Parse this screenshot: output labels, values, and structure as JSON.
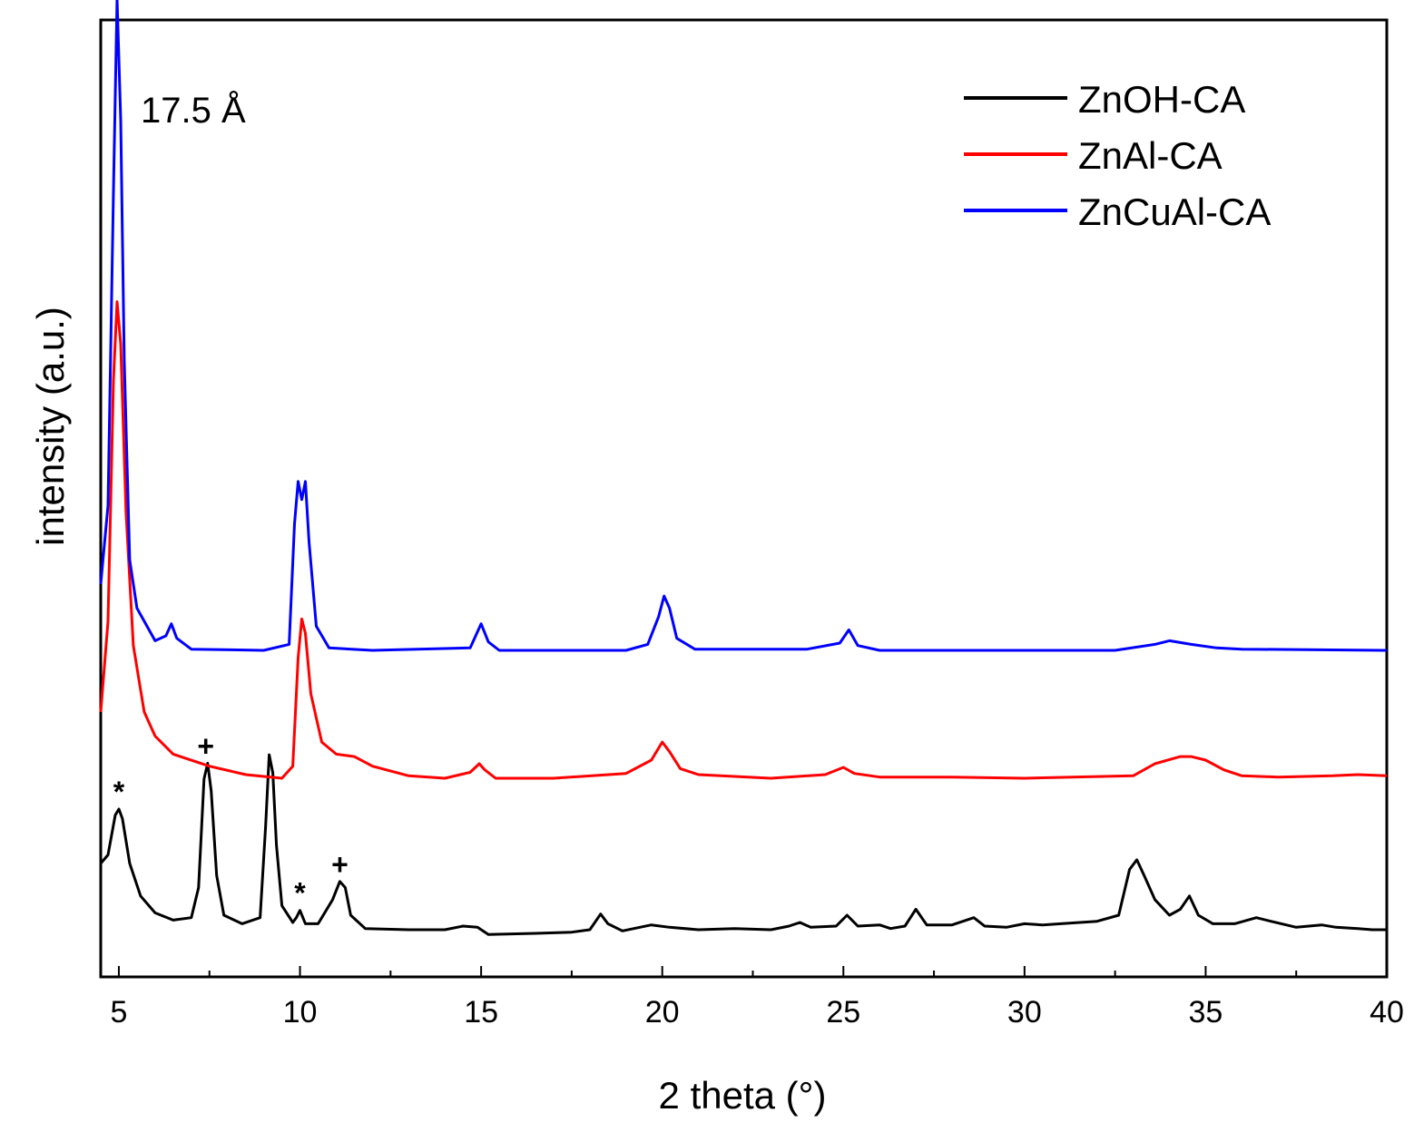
{
  "chart_data": {
    "type": "line",
    "title": "",
    "xlabel": "2 theta (°)",
    "ylabel": "intensity (a.u.)",
    "xlim": [
      4.5,
      40
    ],
    "xticks": [
      5,
      10,
      15,
      20,
      25,
      30,
      35,
      40
    ],
    "y_ticks_shown": false,
    "grid": false,
    "legend_position": "top-right",
    "annotation": "17.5 Å",
    "peak_markers": [
      {
        "symbol": "*",
        "x": 5.0,
        "series": "ZnOH-CA"
      },
      {
        "symbol": "+",
        "x": 7.4,
        "series": "ZnOH-CA"
      },
      {
        "symbol": "*",
        "x": 10.0,
        "series": "ZnOH-CA"
      },
      {
        "symbol": "+",
        "x": 11.1,
        "series": "ZnOH-CA"
      }
    ],
    "series": [
      {
        "name": "ZnOH-CA",
        "color": "#000000",
        "points": [
          [
            4.5,
            0.55
          ],
          [
            4.7,
            0.62
          ],
          [
            4.9,
            0.95
          ],
          [
            5.0,
            1.0
          ],
          [
            5.1,
            0.92
          ],
          [
            5.3,
            0.55
          ],
          [
            5.6,
            0.28
          ],
          [
            6.0,
            0.14
          ],
          [
            6.5,
            0.08
          ],
          [
            7.0,
            0.1
          ],
          [
            7.2,
            0.35
          ],
          [
            7.35,
            1.25
          ],
          [
            7.45,
            1.38
          ],
          [
            7.55,
            1.15
          ],
          [
            7.7,
            0.45
          ],
          [
            7.9,
            0.12
          ],
          [
            8.4,
            0.05
          ],
          [
            8.9,
            0.1
          ],
          [
            9.05,
            0.85
          ],
          [
            9.15,
            1.45
          ],
          [
            9.25,
            1.3
          ],
          [
            9.35,
            0.7
          ],
          [
            9.5,
            0.2
          ],
          [
            9.8,
            0.06
          ],
          [
            9.9,
            0.1
          ],
          [
            10.0,
            0.16
          ],
          [
            10.15,
            0.05
          ],
          [
            10.5,
            0.05
          ],
          [
            10.9,
            0.25
          ],
          [
            11.1,
            0.4
          ],
          [
            11.25,
            0.35
          ],
          [
            11.4,
            0.12
          ],
          [
            11.8,
            0.01
          ],
          [
            13.0,
            0.0
          ],
          [
            14.0,
            0.0
          ],
          [
            14.5,
            0.03
          ],
          [
            14.9,
            0.02
          ],
          [
            15.2,
            -0.04
          ],
          [
            16.5,
            -0.03
          ],
          [
            17.5,
            -0.02
          ],
          [
            18.0,
            0.0
          ],
          [
            18.3,
            0.13
          ],
          [
            18.5,
            0.05
          ],
          [
            18.9,
            -0.01
          ],
          [
            19.7,
            0.04
          ],
          [
            20.2,
            0.02
          ],
          [
            21.0,
            0.0
          ],
          [
            22.0,
            0.01
          ],
          [
            23.0,
            0.0
          ],
          [
            23.5,
            0.03
          ],
          [
            23.8,
            0.06
          ],
          [
            24.1,
            0.02
          ],
          [
            24.8,
            0.03
          ],
          [
            25.1,
            0.12
          ],
          [
            25.4,
            0.03
          ],
          [
            26.0,
            0.04
          ],
          [
            26.3,
            0.01
          ],
          [
            26.7,
            0.03
          ],
          [
            27.0,
            0.17
          ],
          [
            27.3,
            0.04
          ],
          [
            28.0,
            0.04
          ],
          [
            28.6,
            0.1
          ],
          [
            28.9,
            0.03
          ],
          [
            29.5,
            0.02
          ],
          [
            30.0,
            0.05
          ],
          [
            30.5,
            0.04
          ],
          [
            31.0,
            0.05
          ],
          [
            32.0,
            0.07
          ],
          [
            32.6,
            0.12
          ],
          [
            32.9,
            0.5
          ],
          [
            33.1,
            0.58
          ],
          [
            33.3,
            0.45
          ],
          [
            33.6,
            0.25
          ],
          [
            34.0,
            0.12
          ],
          [
            34.3,
            0.17
          ],
          [
            34.55,
            0.28
          ],
          [
            34.8,
            0.12
          ],
          [
            35.2,
            0.05
          ],
          [
            35.8,
            0.05
          ],
          [
            36.4,
            0.1
          ],
          [
            36.8,
            0.07
          ],
          [
            37.5,
            0.02
          ],
          [
            38.2,
            0.04
          ],
          [
            38.6,
            0.02
          ],
          [
            39.2,
            0.01
          ],
          [
            39.6,
            0.0
          ],
          [
            40.0,
            0.0
          ]
        ]
      },
      {
        "name": "ZnAl-CA",
        "color": "#ff0000",
        "points": [
          [
            4.5,
            0.55
          ],
          [
            4.7,
            1.3
          ],
          [
            4.85,
            3.3
          ],
          [
            4.95,
            3.95
          ],
          [
            5.05,
            3.6
          ],
          [
            5.2,
            2.2
          ],
          [
            5.4,
            1.1
          ],
          [
            5.7,
            0.55
          ],
          [
            6.0,
            0.35
          ],
          [
            6.5,
            0.2
          ],
          [
            7.5,
            0.1
          ],
          [
            8.5,
            0.03
          ],
          [
            9.5,
            0.0
          ],
          [
            9.8,
            0.1
          ],
          [
            9.95,
            1.0
          ],
          [
            10.05,
            1.32
          ],
          [
            10.15,
            1.2
          ],
          [
            10.3,
            0.7
          ],
          [
            10.6,
            0.3
          ],
          [
            11.0,
            0.2
          ],
          [
            11.5,
            0.18
          ],
          [
            12.0,
            0.1
          ],
          [
            13.0,
            0.02
          ],
          [
            14.0,
            0.0
          ],
          [
            14.7,
            0.05
          ],
          [
            14.95,
            0.12
          ],
          [
            15.1,
            0.07
          ],
          [
            15.4,
            0.0
          ],
          [
            17.0,
            0.0
          ],
          [
            19.0,
            0.04
          ],
          [
            19.7,
            0.15
          ],
          [
            20.0,
            0.3
          ],
          [
            20.2,
            0.22
          ],
          [
            20.5,
            0.08
          ],
          [
            21.0,
            0.03
          ],
          [
            23.0,
            0.0
          ],
          [
            24.5,
            0.03
          ],
          [
            25.0,
            0.09
          ],
          [
            25.3,
            0.04
          ],
          [
            26.0,
            0.01
          ],
          [
            28.0,
            0.01
          ],
          [
            30.0,
            0.0
          ],
          [
            33.0,
            0.02
          ],
          [
            33.6,
            0.12
          ],
          [
            34.3,
            0.18
          ],
          [
            34.6,
            0.18
          ],
          [
            35.0,
            0.15
          ],
          [
            35.5,
            0.07
          ],
          [
            36.0,
            0.02
          ],
          [
            37.0,
            0.01
          ],
          [
            38.5,
            0.02
          ],
          [
            39.2,
            0.03
          ],
          [
            40.0,
            0.02
          ]
        ]
      },
      {
        "name": "ZnCuAl-CA",
        "color": "#0000ff",
        "points": [
          [
            4.5,
            0.55
          ],
          [
            4.7,
            1.2
          ],
          [
            4.85,
            3.8
          ],
          [
            4.95,
            5.4
          ],
          [
            5.05,
            4.4
          ],
          [
            5.15,
            2.4
          ],
          [
            5.3,
            0.75
          ],
          [
            5.5,
            0.35
          ],
          [
            6.0,
            0.08
          ],
          [
            6.3,
            0.12
          ],
          [
            6.45,
            0.22
          ],
          [
            6.6,
            0.1
          ],
          [
            7.0,
            0.01
          ],
          [
            9.0,
            0.0
          ],
          [
            9.7,
            0.05
          ],
          [
            9.85,
            1.05
          ],
          [
            9.95,
            1.4
          ],
          [
            10.05,
            1.25
          ],
          [
            10.15,
            1.4
          ],
          [
            10.25,
            0.9
          ],
          [
            10.45,
            0.2
          ],
          [
            10.8,
            0.02
          ],
          [
            12.0,
            0.0
          ],
          [
            14.7,
            0.02
          ],
          [
            15.0,
            0.22
          ],
          [
            15.2,
            0.07
          ],
          [
            15.5,
            0.0
          ],
          [
            19.0,
            0.0
          ],
          [
            19.6,
            0.05
          ],
          [
            19.9,
            0.28
          ],
          [
            20.05,
            0.45
          ],
          [
            20.2,
            0.35
          ],
          [
            20.4,
            0.1
          ],
          [
            20.9,
            0.01
          ],
          [
            24.0,
            0.01
          ],
          [
            24.9,
            0.06
          ],
          [
            25.15,
            0.17
          ],
          [
            25.4,
            0.04
          ],
          [
            26.0,
            0.0
          ],
          [
            30.0,
            0.0
          ],
          [
            32.5,
            0.0
          ],
          [
            33.6,
            0.05
          ],
          [
            34.0,
            0.08
          ],
          [
            34.6,
            0.05
          ],
          [
            35.3,
            0.02
          ],
          [
            36.0,
            0.01
          ],
          [
            40.0,
            0.0
          ]
        ]
      }
    ]
  }
}
